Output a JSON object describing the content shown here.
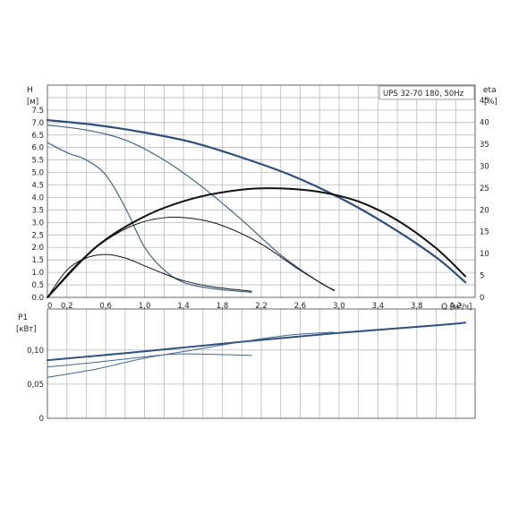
{
  "chart_data": [
    {
      "type": "line",
      "title": "UPS 32-70 180, 50Hz",
      "xlabel": "Q",
      "x_unit": "[м³/ч]",
      "ylabel": "H",
      "y_unit": "[м]",
      "y2label": "eta",
      "y2_unit": "[%]",
      "xlim": [
        0,
        4.4
      ],
      "ylim": [
        0,
        8.5
      ],
      "y2lim": [
        0,
        48.5
      ],
      "grid": true,
      "x_ticks": [
        "0",
        "0,2",
        "0,6",
        "1,0",
        "1,4",
        "1,8",
        "2,2",
        "2,6",
        "3,0",
        "3,4",
        "3,8",
        "4,2"
      ],
      "x_tick_values": [
        0,
        0.2,
        0.6,
        1.0,
        1.4,
        1.8,
        2.2,
        2.6,
        3.0,
        3.4,
        3.8,
        4.2
      ],
      "y_ticks": [
        "0.0",
        "0.5",
        "1.0",
        "1.5",
        "2.0",
        "2.5",
        "3.0",
        "3.5",
        "4.0",
        "4.5",
        "5.0",
        "5.5",
        "6.0",
        "6.5",
        "7.0",
        "7.5"
      ],
      "y_tick_values": [
        0,
        0.5,
        1,
        1.5,
        2,
        2.5,
        3,
        3.5,
        4,
        4.5,
        5,
        5.5,
        6,
        6.5,
        7,
        7.5
      ],
      "y2_ticks": [
        "0",
        "5",
        "10",
        "15",
        "20",
        "25",
        "30",
        "35",
        "40",
        "45"
      ],
      "y2_tick_values": [
        0,
        5,
        10,
        15,
        20,
        25,
        30,
        35,
        40,
        45
      ],
      "series": [
        {
          "kind": "head",
          "color": "#2d4f7c",
          "width": 2.2,
          "x": [
            0,
            0.5,
            1.0,
            1.5,
            2.0,
            2.5,
            3.0,
            3.5,
            4.0,
            4.3
          ],
          "y": [
            7.1,
            6.9,
            6.6,
            6.2,
            5.6,
            4.9,
            4.0,
            2.9,
            1.6,
            0.6
          ]
        },
        {
          "kind": "head",
          "color": "#3f6690",
          "width": 1.2,
          "x": [
            0,
            0.4,
            0.8,
            1.2,
            1.6,
            2.0,
            2.4,
            2.8,
            2.95
          ],
          "y": [
            6.9,
            6.7,
            6.3,
            5.5,
            4.4,
            3.1,
            1.7,
            0.6,
            0.3
          ]
        },
        {
          "kind": "head",
          "color": "#3f6690",
          "width": 1.2,
          "x": [
            0,
            0.2,
            0.4,
            0.6,
            0.8,
            1.0,
            1.2,
            1.4,
            1.7,
            2.1
          ],
          "y": [
            6.2,
            5.8,
            5.5,
            4.9,
            3.6,
            2.0,
            1.1,
            0.6,
            0.35,
            0.2
          ]
        },
        {
          "kind": "eta",
          "color": "#111111",
          "width": 2.0,
          "x": [
            0,
            0.5,
            1.0,
            1.5,
            2.0,
            2.4,
            2.8,
            3.2,
            3.6,
            4.0,
            4.3
          ],
          "y": [
            0,
            11.5,
            18.5,
            22.6,
            24.6,
            24.9,
            24.1,
            21.9,
            17.6,
            11.2,
            4.8
          ]
        },
        {
          "kind": "eta",
          "color": "#111111",
          "width": 1.0,
          "x": [
            0,
            0.3,
            0.6,
            0.9,
            1.2,
            1.5,
            1.8,
            2.2,
            2.6,
            2.95
          ],
          "y": [
            0,
            7.5,
            13.0,
            16.6,
            18.2,
            18.0,
            16.4,
            12.2,
            6.2,
            1.5
          ]
        },
        {
          "kind": "eta",
          "color": "#111111",
          "width": 1.0,
          "x": [
            0,
            0.2,
            0.4,
            0.6,
            0.8,
            1.0,
            1.2,
            1.4,
            1.7,
            2.1
          ],
          "y": [
            0,
            6.2,
            9.0,
            9.8,
            9.0,
            7.2,
            5.4,
            3.8,
            2.4,
            1.4
          ]
        }
      ]
    },
    {
      "type": "line",
      "ylabel": "P1",
      "y_unit": "[кВт]",
      "ylim": [
        0,
        0.16
      ],
      "grid": true,
      "y_ticks": [
        "0",
        "0,05",
        "0,10"
      ],
      "y_tick_values": [
        0,
        0.05,
        0.1
      ],
      "series": [
        {
          "color": "#2d4f7c",
          "width": 2.0,
          "x": [
            0,
            1.0,
            2.0,
            3.0,
            4.0,
            4.3
          ],
          "y": [
            0.085,
            0.098,
            0.112,
            0.125,
            0.136,
            0.14
          ]
        },
        {
          "color": "#3f6690",
          "width": 1.0,
          "x": [
            0,
            0.5,
            1.0,
            1.5,
            2.0,
            2.5,
            2.95
          ],
          "y": [
            0.06,
            0.072,
            0.088,
            0.1,
            0.112,
            0.122,
            0.126
          ]
        },
        {
          "color": "#3f6690",
          "width": 1.0,
          "x": [
            0,
            0.5,
            1.0,
            1.3,
            1.6,
            2.1
          ],
          "y": [
            0.075,
            0.082,
            0.09,
            0.094,
            0.094,
            0.092
          ]
        }
      ]
    }
  ]
}
